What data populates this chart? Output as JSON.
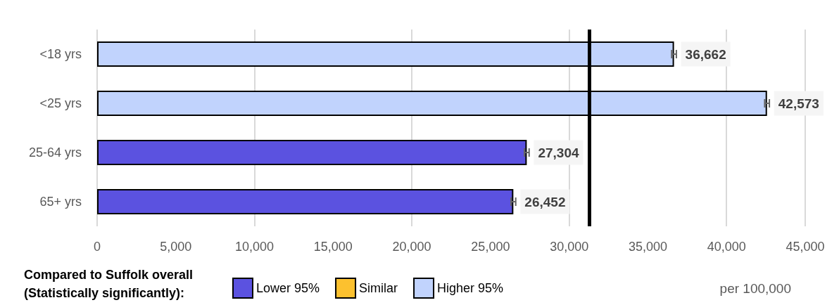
{
  "chart_data": {
    "type": "bar",
    "orientation": "horizontal",
    "categories": [
      "<18 yrs",
      "<25 yrs",
      "25-64 yrs",
      "65+ yrs"
    ],
    "series": [
      {
        "name": "Lower 95%",
        "color": "#5b52e0",
        "values": [
          null,
          null,
          27304,
          26452
        ],
        "value_labels": [
          null,
          null,
          "27,304",
          "26,452"
        ],
        "errors": [
          null,
          null,
          150,
          150
        ]
      },
      {
        "name": "Similar",
        "color": "#fcc12f",
        "values": [
          null,
          null,
          null,
          null
        ]
      },
      {
        "name": "Higher 95%",
        "color": "#c1d3fd",
        "values": [
          36662,
          42573,
          null,
          null
        ],
        "value_labels": [
          "36,662",
          "42,573",
          null,
          null
        ],
        "errors": [
          150,
          150,
          null,
          null
        ]
      }
    ],
    "xlim": [
      0,
      45000
    ],
    "xticks": [
      0,
      {
        "value": 5000,
        "label": "5,000"
      },
      {
        "value": 10000,
        "label": "10,000"
      },
      {
        "value": 15000,
        "label": "15,000"
      },
      {
        "value": 20000,
        "label": "20,000"
      },
      {
        "value": 25000,
        "label": "25,000"
      },
      {
        "value": 30000,
        "label": "30,000"
      },
      {
        "value": 35000,
        "label": "35,000"
      },
      {
        "value": 40000,
        "label": "40,000"
      },
      {
        "value": 45000,
        "label": "45,000"
      }
    ],
    "grid": "x",
    "legend": "bottom",
    "legend_title": "Compared to Suffolk overall (Statistically significantly):",
    "ref_lines": [
      {
        "axis": "x",
        "value": 31300,
        "color": "#000000"
      }
    ],
    "annotations": [
      "per 100,000"
    ]
  }
}
